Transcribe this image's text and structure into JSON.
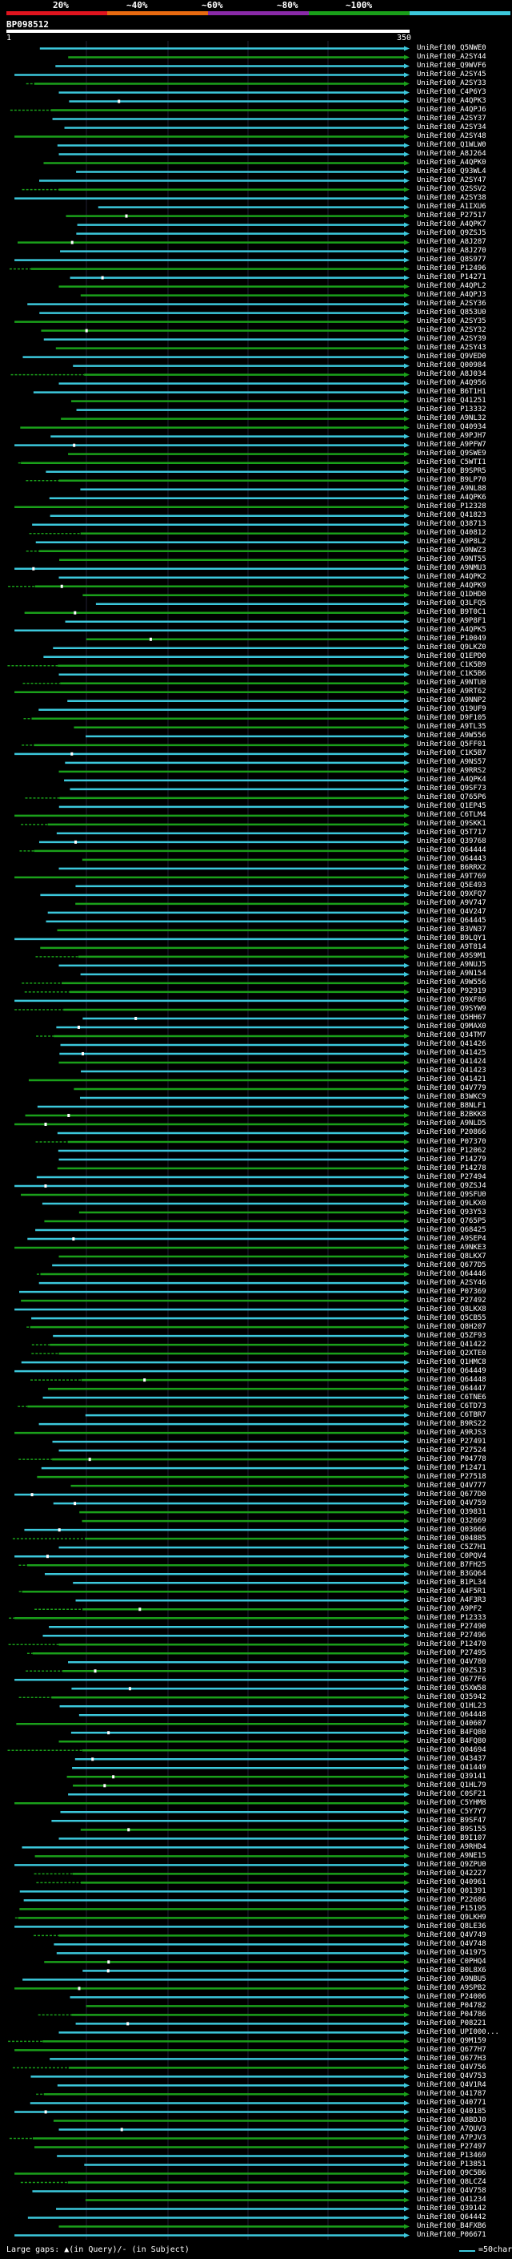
{
  "header": {
    "pct_labels": [
      "20%",
      "~40%",
      "~60%",
      "~80%",
      "~100%"
    ],
    "colors": [
      "#e0141e",
      "#e86a10",
      "#8a2aa8",
      "#1aa01a",
      "#3cc8dc"
    ],
    "query_id": "BP098512",
    "axis_start": "1",
    "axis_end": "350"
  },
  "footer": {
    "text": "Large gaps: ▲(in Query)/- (in Subject)",
    "legend_text": "=50char."
  },
  "chart_data": {
    "type": "alignment",
    "query_length": 350,
    "entries": [
      "UniRef100_Q5NWE0",
      "UniRef100_A2SY44",
      "UniRef100_Q9WVF6",
      "UniRef100_A2SY45",
      "UniRef100_A2SY33",
      "UniRef100_C4P6Y3",
      "UniRef100_A4QPK3",
      "UniRef100_A4QPJ6",
      "UniRef100_A2SY37",
      "UniRef100_A2SY34",
      "UniRef100_A2SY48",
      "UniRef100_Q1WLW0",
      "UniRef100_A8J264",
      "UniRef100_A4QPK0",
      "UniRef100_Q93WL4",
      "UniRef100_A2SY47",
      "UniRef100_Q2SSV2",
      "UniRef100_A2SY38",
      "UniRef100_A1IXU6",
      "UniRef100_P27517",
      "UniRef100_A4QPK7",
      "UniRef100_Q9ZSJ5",
      "UniRef100_A8J287",
      "UniRef100_A8J270",
      "UniRef100_Q8S977",
      "UniRef100_P12496",
      "UniRef100_P14271",
      "UniRef100_A4QPL2",
      "UniRef100_A4QPJ3",
      "UniRef100_A2SY36",
      "UniRef100_Q853U0",
      "UniRef100_A2SY35",
      "UniRef100_A2SY32",
      "UniRef100_A2SY39",
      "UniRef100_A2SY43",
      "UniRef100_Q9VED0",
      "UniRef100_Q00984",
      "UniRef100_A8J034",
      "UniRef100_A4Q956",
      "UniRef100_B6T1H1",
      "UniRef100_Q41251",
      "UniRef100_P13332",
      "UniRef100_A9NL32",
      "UniRef100_Q40934",
      "UniRef100_A9PJH7",
      "UniRef100_A9PFW7",
      "UniRef100_Q9SWE9",
      "UniRef100_C5WTI1",
      "UniRef100_B9SPR5",
      "UniRef100_B9LP70",
      "UniRef100_A9NL88",
      "UniRef100_A4QPK6",
      "UniRef100_P12328",
      "UniRef100_Q41823",
      "UniRef100_Q38713",
      "UniRef100_Q40812",
      "UniRef100_A9P8L2",
      "UniRef100_A9NWZ3",
      "UniRef100_A9NT55",
      "UniRef100_A9NMU3",
      "UniRef100_A4QPK2",
      "UniRef100_A4QPK9",
      "UniRef100_Q1DHD0",
      "UniRef100_Q3LFQ5",
      "UniRef100_B9T0C1",
      "UniRef100_A9P8F1",
      "UniRef100_A4QPK5",
      "UniRef100_P10049",
      "UniRef100_Q9LKZ0",
      "UniRef100_Q1EPD0",
      "UniRef100_C1K5B9",
      "UniRef100_C1K5B6",
      "UniRef100_A9NTU0",
      "UniRef100_A9RT62",
      "UniRef100_A9NNP2",
      "UniRef100_Q19UF9",
      "UniRef100_D9F105",
      "UniRef100_A9TL35",
      "UniRef100_A9W556",
      "UniRef100_Q5FF01",
      "UniRef100_C1K5B7",
      "UniRef100_A9NS57",
      "UniRef100_A9RRS2",
      "UniRef100_A4QPK4",
      "UniRef100_Q9SF73",
      "UniRef100_Q765P6",
      "UniRef100_Q1EP45",
      "UniRef100_C6TLM4",
      "UniRef100_Q9SKK1",
      "UniRef100_Q5T717",
      "UniRef100_Q39768",
      "UniRef100_Q64444",
      "UniRef100_Q64443",
      "UniRef100_B6RRX2",
      "UniRef100_A9T769",
      "UniRef100_Q5E493",
      "UniRef100_Q9XFQ7",
      "UniRef100_A9V747",
      "UniRef100_Q4V247",
      "UniRef100_Q64445",
      "UniRef100_B3VN37",
      "UniRef100_B9LQY1",
      "UniRef100_A9T814",
      "UniRef100_A9S9M1",
      "UniRef100_A9NUJ5",
      "UniRef100_A9N154",
      "UniRef100_A9W556",
      "UniRef100_P92919",
      "UniRef100_Q9XF86",
      "UniRef100_Q9SYW9",
      "UniRef100_Q5HH67",
      "UniRef100_Q9MAX0",
      "UniRef100_Q34TM7",
      "UniRef100_Q41426",
      "UniRef100_Q41425",
      "UniRef100_Q41424",
      "UniRef100_Q41423",
      "UniRef100_Q41421",
      "UniRef100_Q4V779",
      "UniRef100_B3WKC9",
      "UniRef100_B8NLF1",
      "UniRef100_B2BKK8",
      "UniRef100_A9NLD5",
      "UniRef100_P20866",
      "UniRef100_P07370",
      "UniRef100_P12062",
      "UniRef100_P14279",
      "UniRef100_P14278",
      "UniRef100_P27494",
      "UniRef100_Q9ZSJ4",
      "UniRef100_Q9SFU0",
      "UniRef100_Q9LKX0",
      "UniRef100_Q93Y53",
      "UniRef100_Q765P5",
      "UniRef100_Q68425",
      "UniRef100_A9SEP4",
      "UniRef100_A9NKE3",
      "UniRef100_Q8LKX7",
      "UniRef100_Q677D5",
      "UniRef100_Q64446",
      "UniRef100_A2SY46",
      "UniRef100_P07369",
      "UniRef100_P27492",
      "UniRef100_Q8LKX8",
      "UniRef100_Q5CB55",
      "UniRef100_Q8H207",
      "UniRef100_Q5ZF93",
      "UniRef100_Q41422",
      "UniRef100_Q2XTE0",
      "UniRef100_Q1HMC8",
      "UniRef100_Q64449",
      "UniRef100_Q64448",
      "UniRef100_Q64447",
      "UniRef100_C6TNE6",
      "UniRef100_C6TD73",
      "UniRef100_C6TBR7",
      "UniRef100_B9RS22",
      "UniRef100_A9RJS3",
      "UniRef100_P27491",
      "UniRef100_P27524",
      "UniRef100_P04778",
      "UniRef100_P12471",
      "UniRef100_P27518",
      "UniRef100_Q4V777",
      "UniRef100_Q677D0",
      "UniRef100_Q4V759",
      "UniRef100_Q39831",
      "UniRef100_Q32669",
      "UniRef100_Q03666",
      "UniRef100_Q04885",
      "UniRef100_C5Z7H1",
      "UniRef100_C0PQV4",
      "UniRef100_B7FH25",
      "UniRef100_B3GQ64",
      "UniRef100_B1PL34",
      "UniRef100_A4F5R1",
      "UniRef100_A4F3R3",
      "UniRef100_A9PF2",
      "UniRef100_P12333",
      "UniRef100_P27490",
      "UniRef100_P27496",
      "UniRef100_P12470",
      "UniRef100_P27495",
      "UniRef100_Q4V780",
      "UniRef100_Q9ZSJ3",
      "UniRef100_Q677F6",
      "UniRef100_Q5XW58",
      "UniRef100_Q35942",
      "UniRef100_Q1HL23",
      "UniRef100_Q64448",
      "UniRef100_Q40607",
      "UniRef100_B4FQ80",
      "UniRef100_B4FQ80",
      "UniRef100_Q04694",
      "UniRef100_Q43437",
      "UniRef100_Q41449",
      "UniRef100_Q39141",
      "UniRef100_Q1HL79",
      "UniRef100_C0SF21",
      "UniRef100_C5YHM8",
      "UniRef100_C5Y7Y7",
      "UniRef100_B9SF47",
      "UniRef100_B9S155",
      "UniRef100_B9I107",
      "UniRef100_A9RHD4",
      "UniRef100_A9NE15",
      "UniRef100_Q9ZPU0",
      "UniRef100_Q42227",
      "UniRef100_Q40961",
      "UniRef100_Q01391",
      "UniRef100_P22686",
      "UniRef100_P15195",
      "UniRef100_Q9LKH9",
      "UniRef100_Q8LE36",
      "UniRef100_Q4V749",
      "UniRef100_Q4V748",
      "UniRef100_Q41975",
      "UniRef100_C0PHQ4",
      "UniRef100_B0L8X6",
      "UniRef100_A9NBU5",
      "UniRef100_A9SPB2",
      "UniRef100_P24006",
      "UniRef100_P04782",
      "UniRef100_P04786",
      "UniRef100_P08221",
      "UniRef100_UPI000...",
      "UniRef100_Q9M159",
      "UniRef100_Q677H7",
      "UniRef100_Q677H3",
      "UniRef100_Q4V756",
      "UniRef100_Q4V753",
      "UniRef100_Q4V1R4",
      "UniRef100_Q41787",
      "UniRef100_Q40771",
      "UniRef100_Q40185",
      "UniRef100_A8BDJ0",
      "UniRef100_A7QUV3",
      "UniRef100_A7PJV3",
      "UniRef100_P27497",
      "UniRef100_P13469",
      "UniRef100_P13851",
      "UniRef100_Q9C5B6",
      "UniRef100_Q8LCZ4",
      "UniRef100_Q4V758",
      "UniRef100_Q41234",
      "UniRef100_Q39142",
      "UniRef100_Q64442",
      "UniRef100_B4FXB6",
      "UniRef100_P06671"
    ]
  }
}
